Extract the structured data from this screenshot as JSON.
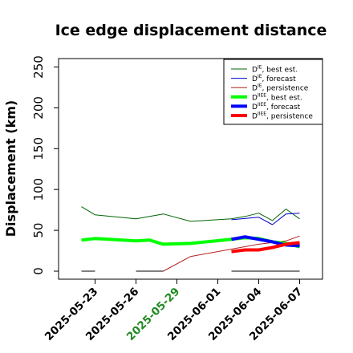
{
  "chart_data": {
    "type": "line",
    "title": "Ice edge displacement distance",
    "xlabel": "",
    "ylabel": "Displacement (km)",
    "x_axis": {
      "type": "date",
      "range": [
        "2025-05-20",
        "2025-06-07"
      ],
      "ticks": [
        "2025-05-23",
        "2025-05-26",
        "2025-05-29",
        "2025-06-01",
        "2025-06-04",
        "2025-06-07"
      ],
      "highlighted_tick": "2025-05-29",
      "highlight_color": "#228b22"
    },
    "ylim": [
      -8,
      260
    ],
    "yticks": [
      0,
      50,
      100,
      150,
      200,
      250
    ],
    "grid": false,
    "legend_position": "top-right",
    "series": [
      {
        "name": "D^IE, best est.",
        "name_base": "D",
        "name_sup": "IE",
        "name_rest": ", best est.",
        "color": "#006400",
        "line_width": 1,
        "segments": [
          [
            [
              "2025-05-22",
              79
            ],
            [
              "2025-05-23",
              69
            ],
            [
              "2025-05-26",
              64
            ],
            [
              "2025-05-28",
              70
            ],
            [
              "2025-05-30",
              61
            ],
            [
              "2025-06-02",
              64
            ],
            [
              "2025-06-03",
              67
            ],
            [
              "2025-06-04",
              71
            ],
            [
              "2025-06-05",
              62
            ],
            [
              "2025-06-06",
              76
            ],
            [
              "2025-06-07",
              64
            ]
          ]
        ]
      },
      {
        "name": "D^IE, forecast",
        "name_base": "D",
        "name_sup": "IE",
        "name_rest": ", forecast",
        "color": "#0000cd",
        "line_width": 1,
        "segments": [
          [
            [
              "2025-06-02",
              63
            ],
            [
              "2025-06-04",
              66
            ],
            [
              "2025-06-05",
              57
            ],
            [
              "2025-06-06",
              70
            ],
            [
              "2025-06-07",
              71
            ]
          ]
        ]
      },
      {
        "name": "D^IE, persistence",
        "name_base": "D",
        "name_sup": "IE",
        "name_rest": ", persistence",
        "color": "#b22222",
        "line_width": 1,
        "segments": [
          [
            [
              "2025-05-28",
              0
            ],
            [
              "2025-05-30",
              18
            ],
            [
              "2025-06-02",
              27
            ],
            [
              "2025-06-04",
              33
            ],
            [
              "2025-06-06",
              37
            ],
            [
              "2025-06-07",
              43
            ]
          ]
        ]
      },
      {
        "name": "D^IIEE, best est.",
        "name_base": "D",
        "name_sup": "IIEE",
        "name_rest": ", best est.",
        "color": "#00ff00",
        "line_width": 4,
        "segments": [
          [
            [
              "2025-05-22",
              38
            ],
            [
              "2025-05-23",
              40
            ],
            [
              "2025-05-26",
              37
            ],
            [
              "2025-05-27",
              38
            ],
            [
              "2025-05-28",
              33
            ],
            [
              "2025-05-30",
              34
            ],
            [
              "2025-06-02",
              39
            ],
            [
              "2025-06-03",
              41
            ],
            [
              "2025-06-04",
              40
            ],
            [
              "2025-06-05",
              36
            ],
            [
              "2025-06-06",
              34
            ],
            [
              "2025-06-07",
              30
            ]
          ]
        ]
      },
      {
        "name": "D^IIEE, forecast",
        "name_base": "D",
        "name_sup": "IIEE",
        "name_rest": ", forecast",
        "color": "#0000ff",
        "line_width": 4,
        "segments": [
          [
            [
              "2025-06-02",
              39
            ],
            [
              "2025-06-03",
              42
            ],
            [
              "2025-06-04",
              39
            ],
            [
              "2025-06-05",
              36
            ],
            [
              "2025-06-06",
              32
            ],
            [
              "2025-06-07",
              31
            ]
          ]
        ]
      },
      {
        "name": "D^IIEE, persistence",
        "name_base": "D",
        "name_sup": "IIEE",
        "name_rest": ", persistence",
        "color": "#ff0000",
        "line_width": 4,
        "segments": [
          [
            [
              "2025-06-02",
              24
            ],
            [
              "2025-06-03",
              26
            ],
            [
              "2025-06-04",
              26
            ],
            [
              "2025-06-05",
              29
            ],
            [
              "2025-06-06",
              33
            ],
            [
              "2025-06-07",
              35
            ]
          ]
        ]
      },
      {
        "name": "",
        "color": "#808080",
        "line_width": 2,
        "segments": [
          [
            [
              "2025-05-22",
              0
            ],
            [
              "2025-05-23",
              0
            ]
          ],
          [
            [
              "2025-05-26",
              0
            ],
            [
              "2025-05-28",
              0
            ]
          ],
          [
            [
              "2025-06-02",
              0
            ],
            [
              "2025-06-07",
              0
            ]
          ]
        ]
      }
    ]
  }
}
